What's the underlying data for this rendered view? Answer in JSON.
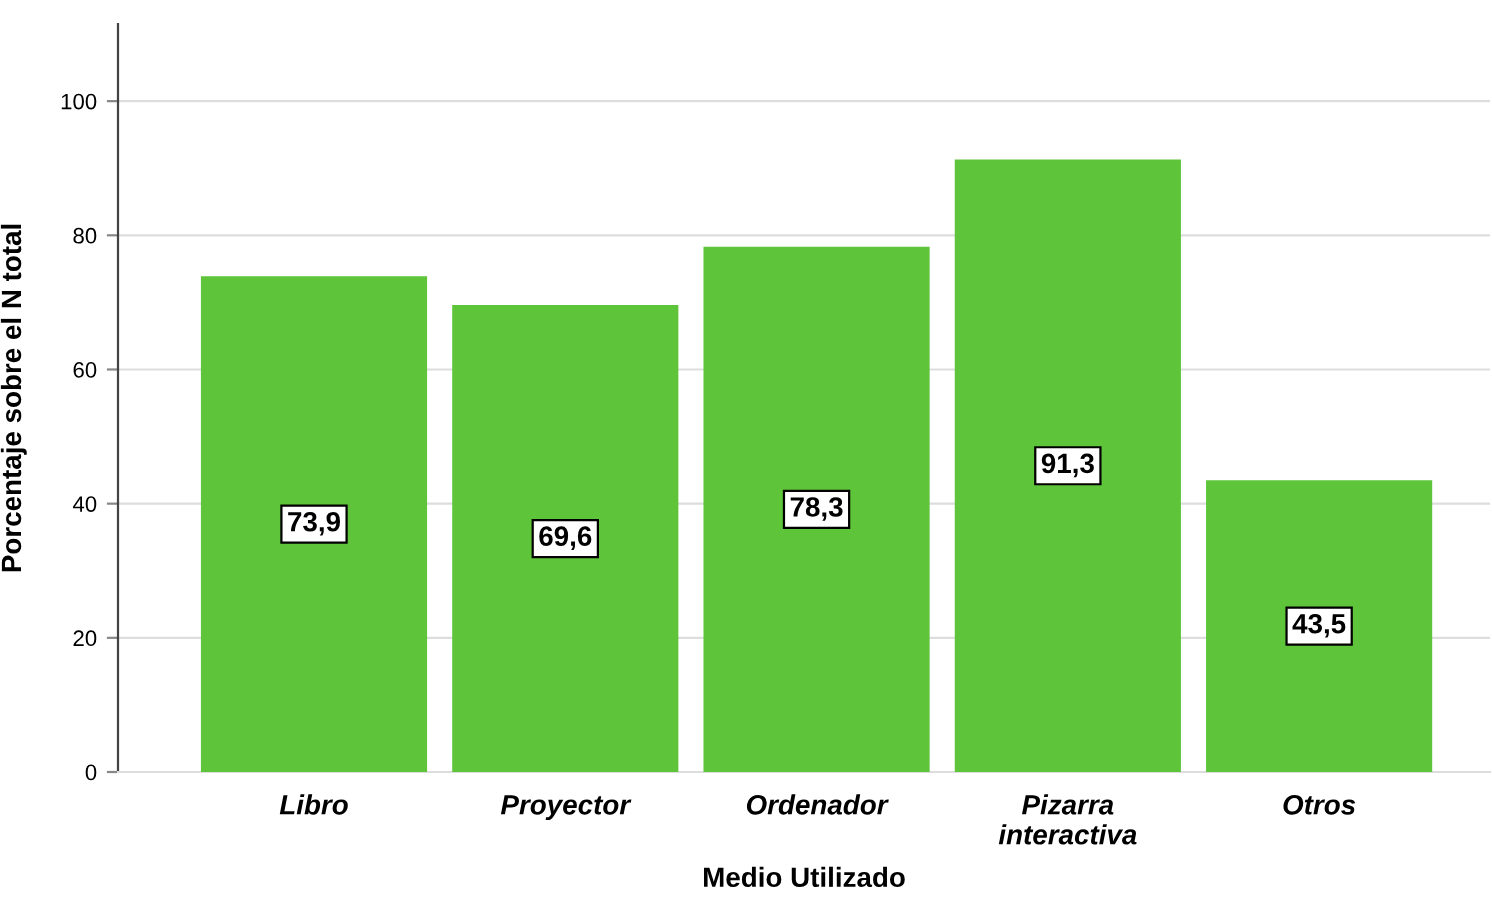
{
  "chart_data": {
    "type": "bar",
    "xlabel": "Medio Utilizado",
    "ylabel": "Porcentaje sobre el N total",
    "categories": [
      "Libro",
      "Proyector",
      "Ordenador",
      "Pizarra\ninteractiva",
      "Otros"
    ],
    "values": [
      73.9,
      69.6,
      78.3,
      91.3,
      43.5
    ],
    "value_labels": [
      "73,9",
      "69,6",
      "78,3",
      "91,3",
      "43,5"
    ],
    "color": "#5ec43a",
    "ylim": [
      0,
      111.5
    ],
    "yticks": [
      0,
      20,
      40,
      60,
      80,
      100
    ],
    "grid": "y"
  }
}
